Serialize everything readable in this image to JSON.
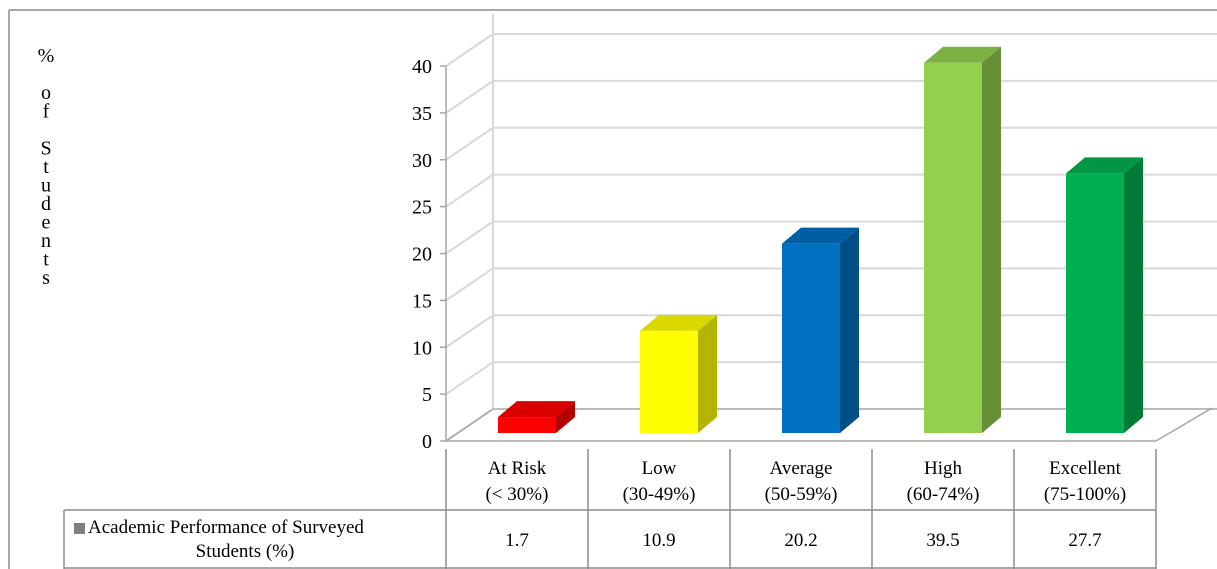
{
  "chart_data": {
    "type": "bar",
    "title": "",
    "ylabel": "% of Students",
    "xlabel": "",
    "ylim": [
      0,
      40
    ],
    "yticks": [
      0,
      5,
      10,
      15,
      20,
      25,
      30,
      35,
      40
    ],
    "grid": true,
    "categories": [
      [
        "At Risk",
        "(< 30%)"
      ],
      [
        "Low",
        "(30-49%)"
      ],
      [
        "Average",
        "(50-59%)"
      ],
      [
        "High",
        "(60-74%)"
      ],
      [
        "Excellent",
        "(75-100%)"
      ]
    ],
    "series": [
      {
        "name": "Academic Performance of Surveyed Students (%)",
        "values": [
          1.7,
          10.9,
          20.2,
          39.5,
          27.7
        ],
        "colors": [
          "#ff0000",
          "#ffff00",
          "#0070c0",
          "#92d050",
          "#00b050"
        ],
        "side_colors": [
          "#b30000",
          "#b3b300",
          "#004e86",
          "#668f38",
          "#007b38"
        ],
        "top_colors": [
          "#d90000",
          "#d9d900",
          "#005fa3",
          "#7cb144",
          "#009644"
        ]
      }
    ],
    "legend_placement": "data table"
  }
}
